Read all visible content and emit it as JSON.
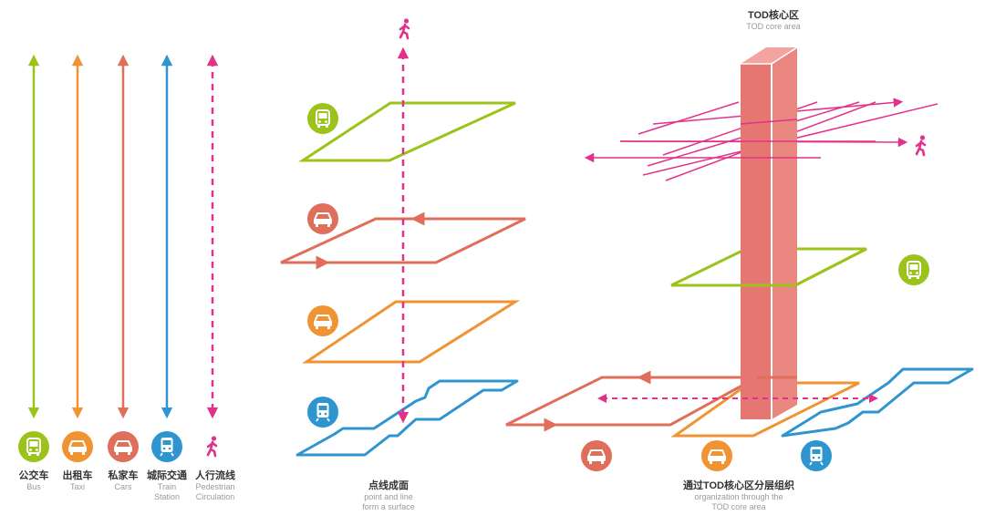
{
  "colors": {
    "bus": "#9bc31c",
    "taxi": "#f09332",
    "car": "#df6e5b",
    "train": "#2f95cf",
    "pedestrian": "#e2318a",
    "tower": "#e67671"
  },
  "legend": [
    {
      "key": "bus",
      "cn": "公交车",
      "en1": "Bus",
      "en2": "",
      "icon": "bus-icon"
    },
    {
      "key": "taxi",
      "cn": "出租车",
      "en1": "Taxi",
      "en2": "",
      "icon": "taxi-icon"
    },
    {
      "key": "car",
      "cn": "私家车",
      "en1": "Cars",
      "en2": "",
      "icon": "car-icon"
    },
    {
      "key": "train",
      "cn": "城际交通",
      "en1": "Train",
      "en2": "Station",
      "icon": "train-icon"
    },
    {
      "key": "pedestrian",
      "cn": "人行流线",
      "en1": "Pedestrian",
      "en2": "Circulation",
      "icon": "pedestrian-icon"
    }
  ],
  "middle": {
    "cn": "点线成面",
    "en1": "point and line",
    "en2": "form a surface"
  },
  "right": {
    "top_cn": "TOD核心区",
    "top_en": "TOD core area",
    "bottom_cn": "通过TOD核心区分层组织",
    "bottom_en1": "organization through the",
    "bottom_en2": "TOD core area"
  }
}
